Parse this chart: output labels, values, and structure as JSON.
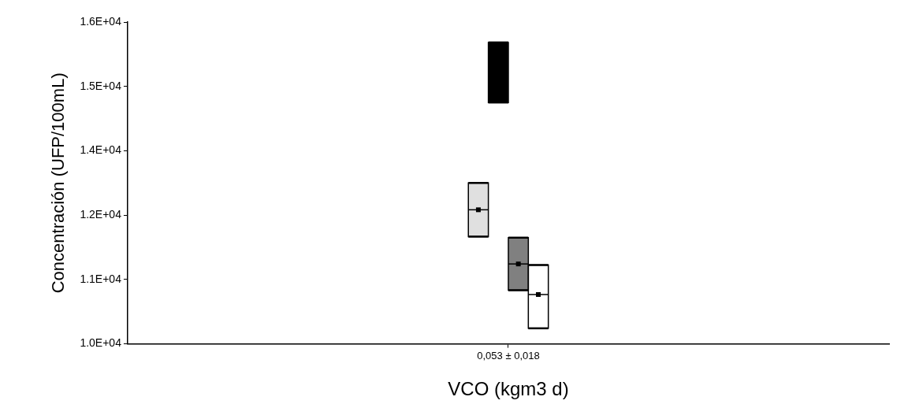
{
  "chart_data": {
    "type": "box",
    "xlabel": "VCO (kgm3 d)",
    "ylabel": "Concentración (UFP/100mL)",
    "categories": [
      "0,053 ± 0,018"
    ],
    "ylim": [
      10000,
      16000
    ],
    "yticks": [
      {
        "value": 10000,
        "label": "1.0E+04"
      },
      {
        "value": 11200,
        "label": "1.1E+04"
      },
      {
        "value": 12400,
        "label": "1.2E+04"
      },
      {
        "value": 13600,
        "label": "1.4E+04"
      },
      {
        "value": 14800,
        "label": "1.5E+04"
      },
      {
        "value": 16000,
        "label": "1.6E+04"
      }
    ],
    "grid": false,
    "legend": false,
    "series": [
      {
        "color": "#e0e0e0",
        "boxes": [
          {
            "low": 12000,
            "q1": 12000,
            "median": 12500,
            "q3": 13000,
            "high": 13000,
            "mean": 12500
          }
        ]
      },
      {
        "color": "#000000",
        "boxes": [
          {
            "low": 14500,
            "q1": 14500,
            "median": 15050,
            "q3": 15620,
            "high": 15620
          }
        ]
      },
      {
        "color": "#808080",
        "boxes": [
          {
            "low": 11000,
            "q1": 11000,
            "median": 11490,
            "q3": 11980,
            "high": 11980,
            "mean": 11490
          }
        ]
      },
      {
        "color": "#ffffff",
        "boxes": [
          {
            "low": 10290,
            "q1": 10290,
            "median": 10920,
            "q3": 11470,
            "high": 11470,
            "mean": 10920
          }
        ]
      }
    ]
  }
}
